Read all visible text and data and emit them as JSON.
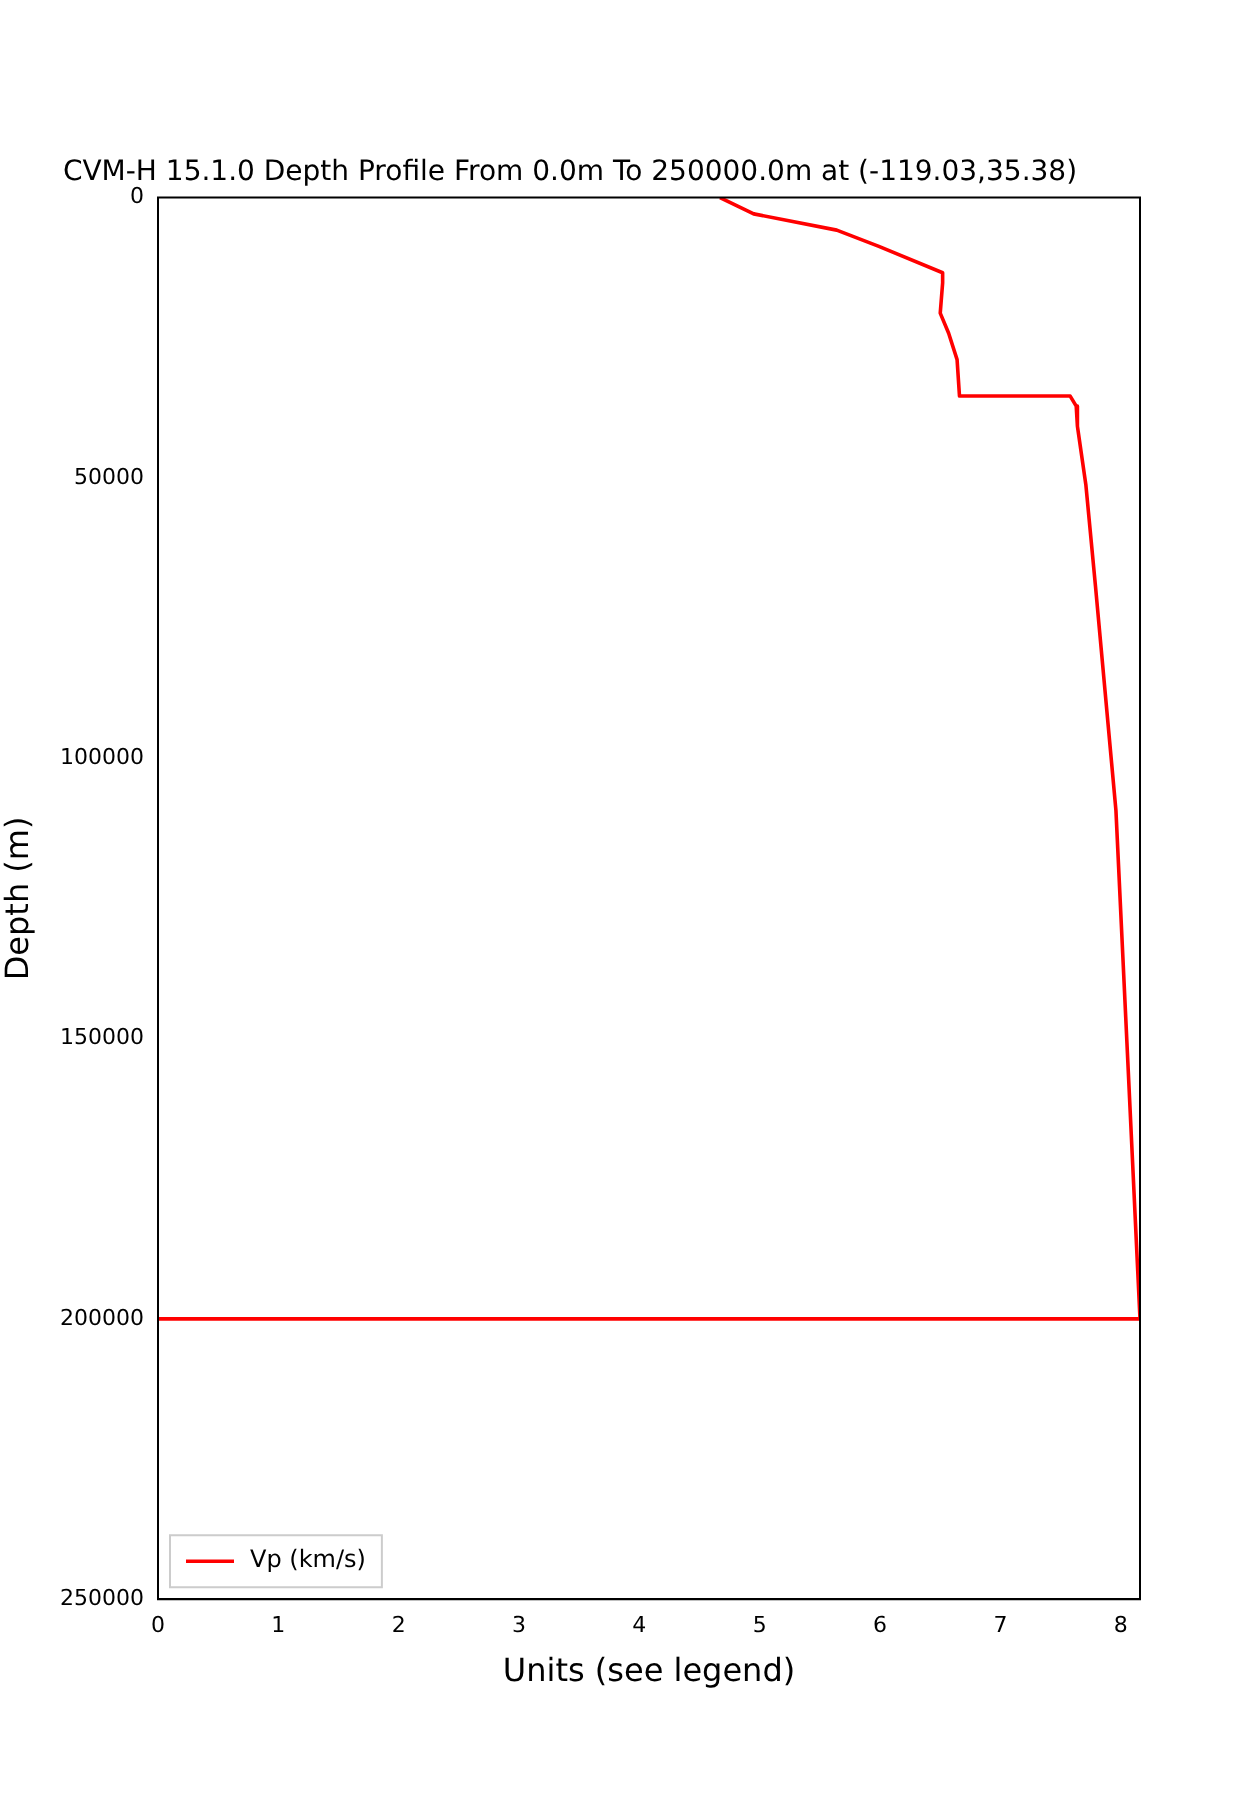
{
  "chart_data": {
    "type": "line",
    "title": "CVM-H 15.1.0 Depth Profile From 0.0m To 250000.0m at (-119.03,35.38)",
    "xlabel": "Units (see legend)",
    "ylabel": "Depth (m)",
    "xlim": [
      0,
      8.16
    ],
    "xticks": [
      0,
      1,
      2,
      3,
      4,
      5,
      6,
      7,
      8
    ],
    "ylim": [
      250000,
      0
    ],
    "yticks": [
      0,
      50000,
      100000,
      150000,
      200000,
      250000
    ],
    "grid": false,
    "legend": "bottom left",
    "marker": "none",
    "line_style": "solid",
    "series": [
      {
        "name": "Vp (km/s)",
        "color": "#ff0000",
        "x": [
          4.67,
          4.95,
          5.64,
          5.99,
          6.52,
          6.52,
          6.5,
          6.57,
          6.64,
          6.66,
          7.58,
          7.63,
          7.64,
          7.71,
          7.79,
          7.96,
          8.16,
          0
        ],
        "values": [
          0,
          2900,
          5800,
          8700,
          13400,
          15200,
          20600,
          24200,
          28900,
          35400,
          35400,
          37200,
          40800,
          51200,
          69300,
          109300,
          200000,
          200000
        ]
      }
    ]
  }
}
